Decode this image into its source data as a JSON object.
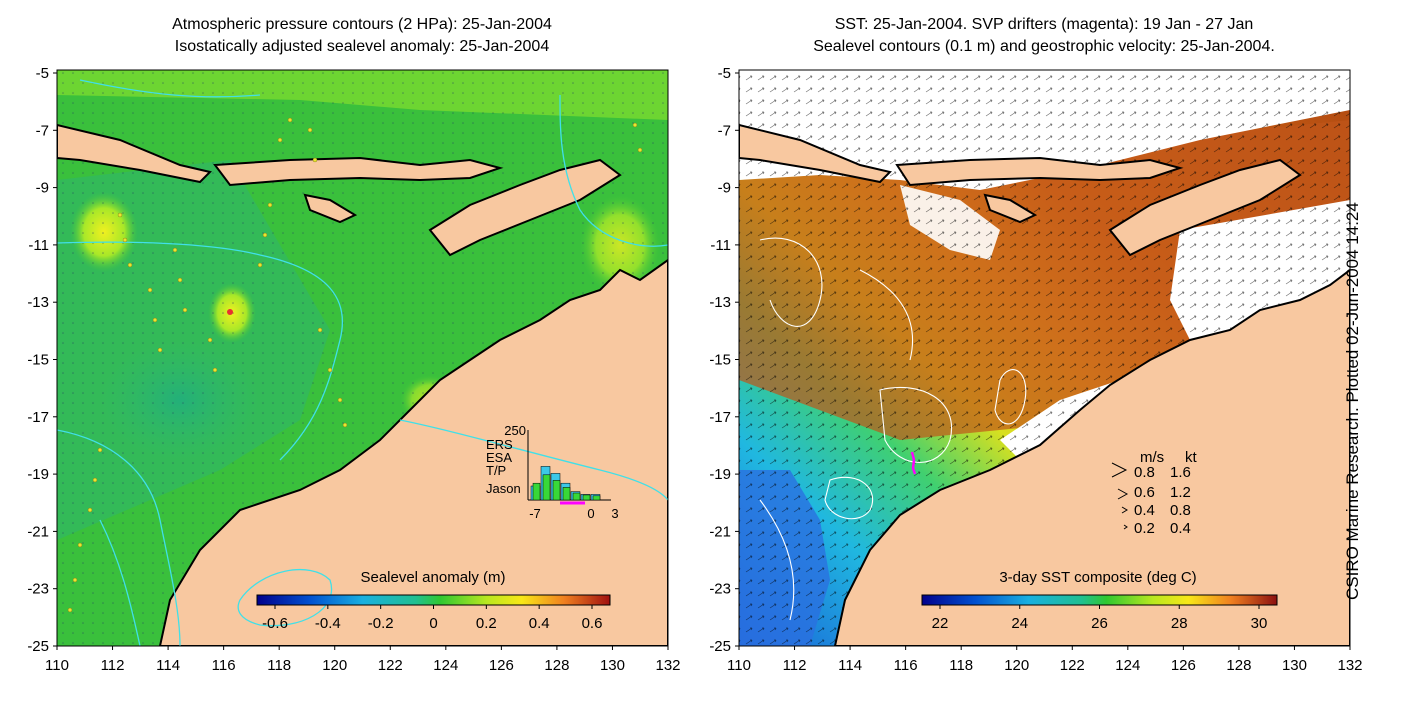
{
  "left_panel": {
    "title_line1": "Atmospheric pressure contours (2 HPa): 25-Jan-2004",
    "title_line2": "Isostatically adjusted sealevel anomaly: 25-Jan-2004",
    "y_ticks": [
      "-5",
      "-7",
      "-9",
      "-11",
      "-13",
      "-15",
      "-17",
      "-19",
      "-21",
      "-23",
      "-25"
    ],
    "x_ticks": [
      "110",
      "112",
      "114",
      "116",
      "118",
      "120",
      "122",
      "124",
      "126",
      "128",
      "130",
      "132"
    ],
    "colorbar": {
      "label": "Sealevel anomaly (m)",
      "ticks": [
        "-0.6",
        "-0.4",
        "-0.2",
        "0",
        "0.2",
        "0.4",
        "0.6"
      ]
    },
    "histogram": {
      "y_max_label": "250",
      "legend": [
        {
          "name": "ERS",
          "color": "#e6d24a"
        },
        {
          "name": "ESA",
          "color": "#3cc8e8"
        },
        {
          "name": "T/P",
          "color": "#38d838"
        },
        {
          "name": "Jason",
          "color": "#7a3cf0"
        }
      ],
      "x_ticks": [
        "-7",
        "0",
        "3"
      ],
      "bars_cyan": [
        50,
        120,
        95,
        60,
        30,
        20,
        20
      ],
      "bars_green": [
        60,
        90,
        70,
        45,
        25,
        18,
        15
      ]
    }
  },
  "right_panel": {
    "title_line1": "SST: 25-Jan-2004. SVP drifters (magenta): 19 Jan - 27 Jan",
    "title_line2": "Sealevel contours (0.1 m) and geostrophic velocity: 25-Jan-2004.",
    "y_ticks": [
      "-5",
      "-7",
      "-9",
      "-11",
      "-13",
      "-15",
      "-17",
      "-19",
      "-21",
      "-23",
      "-25"
    ],
    "x_ticks": [
      "110",
      "112",
      "114",
      "116",
      "118",
      "120",
      "122",
      "124",
      "126",
      "128",
      "130",
      "132"
    ],
    "colorbar": {
      "label": "3-day SST composite (deg C)",
      "ticks": [
        "22",
        "24",
        "26",
        "28",
        "30"
      ]
    },
    "velocity_legend": {
      "header_ms": "m/s",
      "header_kt": "kt",
      "rows": [
        {
          "ms": "0.8",
          "kt": "1.6"
        },
        {
          "ms": "0.6",
          "kt": "1.2"
        },
        {
          "ms": "0.4",
          "kt": "0.8"
        },
        {
          "ms": "0.2",
          "kt": "0.4"
        }
      ]
    }
  },
  "side_note": "CSIRO Marine Research. Plotted 02-Jun-2004 14:24",
  "colors": {
    "land": "#f8c8a0",
    "sea_green": "#38c038",
    "sea_light": "#8ee030",
    "sea_blue": "#2ab090",
    "sst_warm": "#c85a14",
    "sst_mid": "#e8a01e",
    "sst_cool": "#2aa0e0",
    "contour_cyan": "#40e0e8"
  }
}
